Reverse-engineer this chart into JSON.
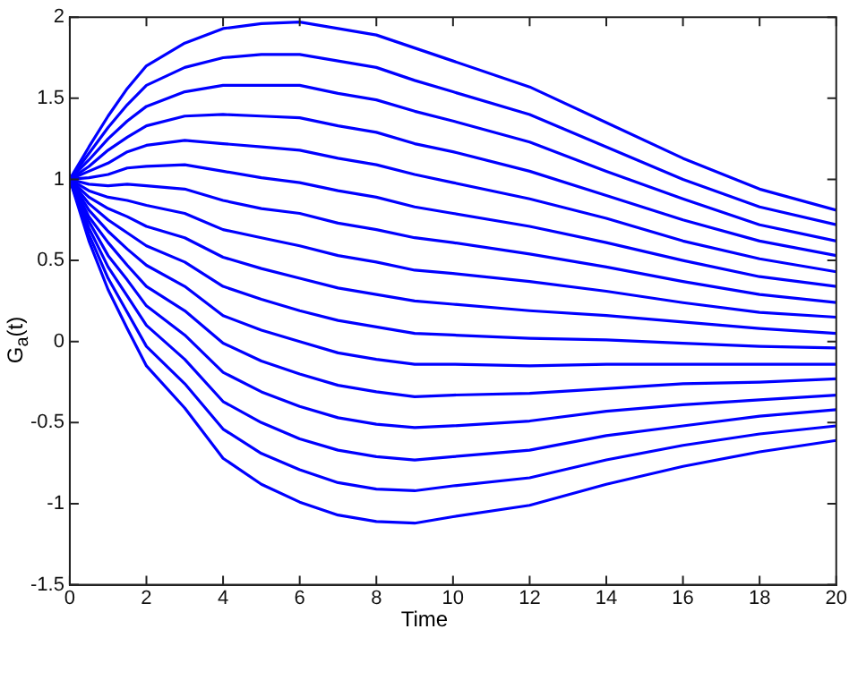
{
  "chart_data": {
    "type": "line",
    "xlabel": "Time",
    "ylabel": "G$_{a}$(t)",
    "x": [
      0,
      0.5,
      1,
      1.5,
      2,
      3,
      4,
      5,
      6,
      7,
      8,
      9,
      10,
      12,
      14,
      16,
      18,
      20
    ],
    "xlim": [
      0,
      20
    ],
    "xticks": [
      0,
      2,
      4,
      6,
      8,
      10,
      12,
      14,
      16,
      18,
      20
    ],
    "ylim": [
      -1.5,
      2
    ],
    "yticks": [
      -1.5,
      -1,
      -0.5,
      0,
      0.5,
      1,
      1.5,
      2
    ],
    "series": [
      {
        "color": "#0000ff",
        "values": [
          1,
          1.2,
          1.39,
          1.56,
          1.7,
          1.84,
          1.93,
          1.96,
          1.97,
          1.93,
          1.89,
          1.81,
          1.73,
          1.57,
          1.35,
          1.13,
          0.94,
          0.81
        ]
      },
      {
        "color": "#0000ff",
        "values": [
          1,
          1.16,
          1.32,
          1.46,
          1.58,
          1.69,
          1.75,
          1.77,
          1.77,
          1.73,
          1.69,
          1.61,
          1.54,
          1.4,
          1.2,
          1.0,
          0.83,
          0.72
        ]
      },
      {
        "color": "#0000ff",
        "values": [
          1,
          1.12,
          1.25,
          1.36,
          1.45,
          1.54,
          1.58,
          1.58,
          1.58,
          1.53,
          1.49,
          1.42,
          1.36,
          1.23,
          1.05,
          0.88,
          0.72,
          0.62
        ]
      },
      {
        "color": "#0000ff",
        "values": [
          1,
          1.08,
          1.18,
          1.26,
          1.33,
          1.39,
          1.4,
          1.39,
          1.38,
          1.33,
          1.29,
          1.22,
          1.17,
          1.05,
          0.9,
          0.75,
          0.62,
          0.53
        ]
      },
      {
        "color": "#0000ff",
        "values": [
          1,
          1.05,
          1.1,
          1.17,
          1.21,
          1.24,
          1.22,
          1.2,
          1.18,
          1.13,
          1.09,
          1.03,
          0.98,
          0.88,
          0.76,
          0.62,
          0.51,
          0.43
        ]
      },
      {
        "color": "#0000ff",
        "values": [
          1,
          1.01,
          1.03,
          1.07,
          1.08,
          1.09,
          1.05,
          1.01,
          0.98,
          0.93,
          0.89,
          0.83,
          0.79,
          0.71,
          0.61,
          0.5,
          0.4,
          0.34
        ]
      },
      {
        "color": "#0000ff",
        "values": [
          1,
          0.97,
          0.96,
          0.97,
          0.96,
          0.94,
          0.87,
          0.82,
          0.79,
          0.73,
          0.69,
          0.64,
          0.61,
          0.54,
          0.46,
          0.37,
          0.29,
          0.24
        ]
      },
      {
        "color": "#0000ff",
        "values": [
          1,
          0.93,
          0.89,
          0.87,
          0.84,
          0.79,
          0.69,
          0.64,
          0.59,
          0.53,
          0.49,
          0.44,
          0.42,
          0.37,
          0.31,
          0.24,
          0.18,
          0.15
        ]
      },
      {
        "color": "#0000ff",
        "values": [
          1,
          0.89,
          0.82,
          0.77,
          0.71,
          0.64,
          0.52,
          0.45,
          0.39,
          0.33,
          0.29,
          0.25,
          0.23,
          0.19,
          0.16,
          0.12,
          0.08,
          0.05
        ]
      },
      {
        "color": "#0000ff",
        "values": [
          1,
          0.85,
          0.75,
          0.67,
          0.59,
          0.49,
          0.34,
          0.26,
          0.19,
          0.13,
          0.09,
          0.05,
          0.04,
          0.02,
          0.01,
          -0.01,
          -0.03,
          -0.04
        ]
      },
      {
        "color": "#0000ff",
        "values": [
          1,
          0.81,
          0.68,
          0.57,
          0.47,
          0.34,
          0.16,
          0.07,
          0,
          -0.07,
          -0.11,
          -0.14,
          -0.14,
          -0.15,
          -0.14,
          -0.14,
          -0.14,
          -0.14
        ]
      },
      {
        "color": "#0000ff",
        "values": [
          1,
          0.77,
          0.61,
          0.47,
          0.34,
          0.19,
          -0.01,
          -0.12,
          -0.2,
          -0.27,
          -0.31,
          -0.34,
          -0.33,
          -0.32,
          -0.29,
          -0.26,
          -0.25,
          -0.23
        ]
      },
      {
        "color": "#0000ff",
        "values": [
          1,
          0.74,
          0.53,
          0.38,
          0.22,
          0.04,
          -0.19,
          -0.31,
          -0.4,
          -0.47,
          -0.51,
          -0.53,
          -0.52,
          -0.49,
          -0.43,
          -0.39,
          -0.36,
          -0.33
        ]
      },
      {
        "color": "#0000ff",
        "values": [
          1,
          0.7,
          0.46,
          0.28,
          0.1,
          -0.11,
          -0.37,
          -0.5,
          -0.6,
          -0.67,
          -0.71,
          -0.73,
          -0.71,
          -0.67,
          -0.58,
          -0.52,
          -0.46,
          -0.42
        ]
      },
      {
        "color": "#0000ff",
        "values": [
          1,
          0.66,
          0.39,
          0.18,
          -0.03,
          -0.26,
          -0.54,
          -0.69,
          -0.79,
          -0.87,
          -0.91,
          -0.92,
          -0.89,
          -0.84,
          -0.73,
          -0.64,
          -0.57,
          -0.52
        ]
      },
      {
        "color": "#0000ff",
        "values": [
          1,
          0.62,
          0.32,
          0.08,
          -0.15,
          -0.41,
          -0.72,
          -0.88,
          -0.99,
          -1.07,
          -1.11,
          -1.12,
          -1.08,
          -1.01,
          -0.88,
          -0.77,
          -0.68,
          -0.61
        ]
      }
    ]
  }
}
